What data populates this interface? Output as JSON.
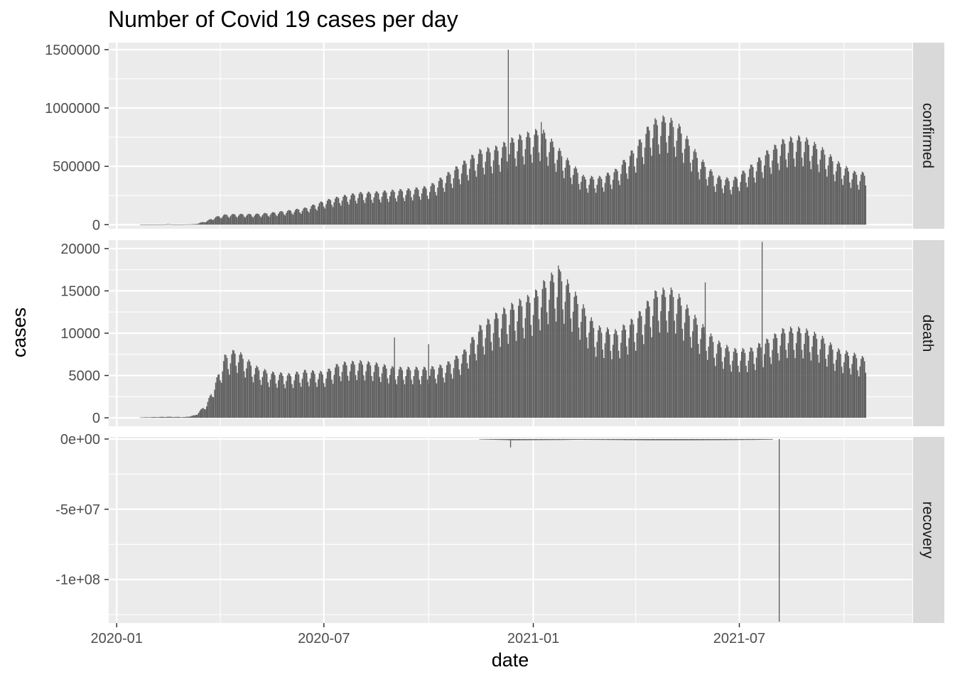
{
  "chart_data": {
    "type": "bar",
    "title": "Number of Covid 19 cases per day",
    "xlabel": "date",
    "ylabel": "cases",
    "x_ticks": [
      "2020-01",
      "2020-07",
      "2021-01",
      "2021-07"
    ],
    "x_range": [
      "2019-12-25",
      "2021-11-30"
    ],
    "data_range": [
      "2020-01-22",
      "2021-10-20"
    ],
    "grid": true,
    "legend": "none",
    "colors": {
      "bar": "#595959",
      "panel_bg": "#ebebeb",
      "strip_bg": "#d9d9d9",
      "grid": "#ffffff"
    },
    "facets": [
      {
        "name": "confirmed",
        "ylim": [
          -35000,
          1560000
        ],
        "y_ticks": [
          0,
          500000,
          1000000,
          1500000
        ],
        "y_tick_labels": [
          "0",
          "500000",
          "1000000",
          "1500000"
        ],
        "series": [
          [
            "2020-01-22",
            500
          ],
          [
            "2020-02-13",
            2000
          ],
          [
            "2020-02-14",
            5000
          ],
          [
            "2020-02-20",
            1000
          ],
          [
            "2020-03-01",
            2000
          ],
          [
            "2020-03-10",
            5000
          ],
          [
            "2020-03-20",
            30000
          ],
          [
            "2020-03-27",
            60000
          ],
          [
            "2020-04-04",
            80000
          ],
          [
            "2020-04-15",
            85000
          ],
          [
            "2020-05-01",
            85000
          ],
          [
            "2020-05-15",
            95000
          ],
          [
            "2020-06-01",
            115000
          ],
          [
            "2020-06-15",
            135000
          ],
          [
            "2020-07-01",
            190000
          ],
          [
            "2020-07-15",
            225000
          ],
          [
            "2020-08-01",
            255000
          ],
          [
            "2020-08-15",
            260000
          ],
          [
            "2020-09-01",
            275000
          ],
          [
            "2020-09-15",
            285000
          ],
          [
            "2020-10-01",
            305000
          ],
          [
            "2020-10-15",
            390000
          ],
          [
            "2020-11-01",
            500000
          ],
          [
            "2020-11-15",
            590000
          ],
          [
            "2020-12-01",
            620000
          ],
          [
            "2020-12-10",
            665000
          ],
          [
            "2020-12-15",
            690000
          ],
          [
            "2021-01-08",
            760000
          ],
          [
            "2021-01-20",
            640000
          ],
          [
            "2021-02-01",
            510000
          ],
          [
            "2021-02-15",
            380000
          ],
          [
            "2021-03-01",
            380000
          ],
          [
            "2021-03-15",
            440000
          ],
          [
            "2021-04-01",
            620000
          ],
          [
            "2021-04-15",
            820000
          ],
          [
            "2021-04-28",
            860000
          ],
          [
            "2021-05-10",
            780000
          ],
          [
            "2021-05-25",
            560000
          ],
          [
            "2021-06-10",
            390000
          ],
          [
            "2021-06-25",
            360000
          ],
          [
            "2021-07-10",
            460000
          ],
          [
            "2021-07-25",
            580000
          ],
          [
            "2021-08-10",
            680000
          ],
          [
            "2021-08-25",
            700000
          ],
          [
            "2021-09-10",
            620000
          ],
          [
            "2021-09-25",
            500000
          ],
          [
            "2021-10-10",
            420000
          ],
          [
            "2021-10-20",
            410000
          ]
        ],
        "spikes": [
          [
            "2020-12-10",
            1500000
          ],
          [
            "2021-01-08",
            880000
          ]
        ]
      },
      {
        "name": "death",
        "ylim": [
          -1000,
          21000
        ],
        "y_ticks": [
          0,
          5000,
          10000,
          15000,
          20000
        ],
        "y_tick_labels": [
          "0",
          "5000",
          "10000",
          "15000",
          "20000"
        ],
        "series": [
          [
            "2020-01-22",
            50
          ],
          [
            "2020-02-15",
            120
          ],
          [
            "2020-03-01",
            80
          ],
          [
            "2020-03-10",
            300
          ],
          [
            "2020-03-20",
            1500
          ],
          [
            "2020-03-28",
            4000
          ],
          [
            "2020-04-05",
            6800
          ],
          [
            "2020-04-15",
            7500
          ],
          [
            "2020-05-01",
            5700
          ],
          [
            "2020-05-15",
            5000
          ],
          [
            "2020-06-01",
            4800
          ],
          [
            "2020-06-15",
            5200
          ],
          [
            "2020-07-01",
            5000
          ],
          [
            "2020-07-15",
            6000
          ],
          [
            "2020-08-01",
            6200
          ],
          [
            "2020-08-15",
            6000
          ],
          [
            "2020-09-01",
            5500
          ],
          [
            "2020-09-15",
            5500
          ],
          [
            "2020-10-01",
            5500
          ],
          [
            "2020-10-15",
            5800
          ],
          [
            "2020-11-01",
            7300
          ],
          [
            "2020-11-15",
            10000
          ],
          [
            "2020-12-01",
            11500
          ],
          [
            "2020-12-15",
            12500
          ],
          [
            "2021-01-01",
            13500
          ],
          [
            "2021-01-15",
            15500
          ],
          [
            "2021-01-25",
            16000
          ],
          [
            "2021-02-10",
            13000
          ],
          [
            "2021-02-25",
            10000
          ],
          [
            "2021-03-15",
            9500
          ],
          [
            "2021-04-01",
            11000
          ],
          [
            "2021-04-20",
            14000
          ],
          [
            "2021-05-05",
            14000
          ],
          [
            "2021-05-20",
            11500
          ],
          [
            "2021-06-10",
            8500
          ],
          [
            "2021-06-25",
            7500
          ],
          [
            "2021-07-10",
            7500
          ],
          [
            "2021-07-25",
            8500
          ],
          [
            "2021-08-10",
            9800
          ],
          [
            "2021-08-25",
            9800
          ],
          [
            "2021-09-10",
            9000
          ],
          [
            "2021-09-25",
            7500
          ],
          [
            "2021-10-10",
            7000
          ],
          [
            "2021-10-20",
            6500
          ]
        ],
        "spikes": [
          [
            "2020-09-01",
            9500
          ],
          [
            "2020-10-01",
            8700
          ],
          [
            "2021-01-23",
            18000
          ],
          [
            "2021-06-01",
            16000
          ],
          [
            "2021-07-21",
            20800
          ]
        ]
      },
      {
        "name": "recovery",
        "ylim": [
          -131000000,
          1500000
        ],
        "y_ticks": [
          0,
          -50000000,
          -100000000
        ],
        "y_tick_labels": [
          "0e+00",
          "-5e+07",
          "-1e+08"
        ],
        "series": [
          [
            "2020-11-15",
            -300000
          ],
          [
            "2020-12-01",
            -600000
          ],
          [
            "2020-12-15",
            -900000
          ],
          [
            "2021-01-01",
            -800000
          ],
          [
            "2021-01-25",
            -700000
          ],
          [
            "2021-02-10",
            -500000
          ],
          [
            "2021-03-15",
            -700000
          ],
          [
            "2021-04-15",
            -900000
          ],
          [
            "2021-05-15",
            -900000
          ],
          [
            "2021-06-15",
            -800000
          ],
          [
            "2021-07-15",
            -600000
          ],
          [
            "2021-07-30",
            -400000
          ]
        ],
        "spikes": [
          [
            "2020-12-12",
            -6000000
          ],
          [
            "2021-08-05",
            -130000000
          ]
        ]
      }
    ]
  }
}
